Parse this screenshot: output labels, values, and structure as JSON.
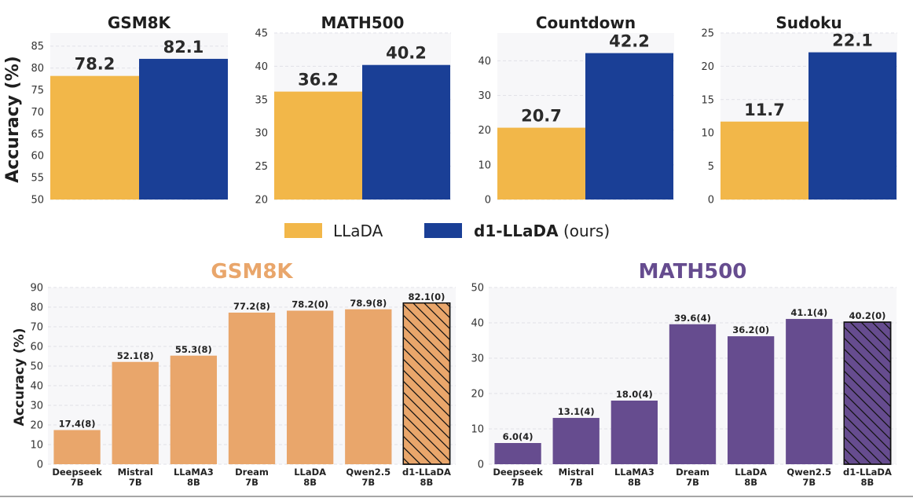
{
  "chart_data": [
    {
      "type": "bar",
      "title": "GSM8K",
      "ylabel": "Accuracy (%)",
      "ylim": [
        50,
        88
      ],
      "yticks": [
        50,
        55,
        60,
        65,
        70,
        75,
        80,
        85
      ],
      "series": [
        {
          "name": "LLaDA",
          "values": [
            78.2
          ],
          "labels": [
            "78.2"
          ]
        },
        {
          "name": "d1-LLaDA",
          "values": [
            82.1
          ],
          "labels": [
            "82.1"
          ]
        }
      ]
    },
    {
      "type": "bar",
      "title": "MATH500",
      "ylabel": "",
      "ylim": [
        20,
        45
      ],
      "yticks": [
        20,
        25,
        30,
        35,
        40,
        45
      ],
      "series": [
        {
          "name": "LLaDA",
          "values": [
            36.2
          ],
          "labels": [
            "36.2"
          ]
        },
        {
          "name": "d1-LLaDA",
          "values": [
            40.2
          ],
          "labels": [
            "40.2"
          ]
        }
      ]
    },
    {
      "type": "bar",
      "title": "Countdown",
      "ylabel": "",
      "ylim": [
        0,
        48
      ],
      "yticks": [
        0,
        10,
        20,
        30,
        40
      ],
      "series": [
        {
          "name": "LLaDA",
          "values": [
            20.7
          ],
          "labels": [
            "20.7"
          ]
        },
        {
          "name": "d1-LLaDA",
          "values": [
            42.2
          ],
          "labels": [
            "42.2"
          ]
        }
      ]
    },
    {
      "type": "bar",
      "title": "Sudoku",
      "ylabel": "",
      "ylim": [
        0,
        25
      ],
      "yticks": [
        0,
        5,
        10,
        15,
        20,
        25
      ],
      "series": [
        {
          "name": "LLaDA",
          "values": [
            11.7
          ],
          "labels": [
            "11.7"
          ]
        },
        {
          "name": "d1-LLaDA",
          "values": [
            22.1
          ],
          "labels": [
            "22.1"
          ]
        }
      ]
    },
    {
      "type": "bar",
      "title": "GSM8K",
      "ylabel": "Accuracy (%)",
      "ylim": [
        0,
        90
      ],
      "yticks": [
        0,
        10,
        20,
        30,
        40,
        50,
        60,
        70,
        80,
        90
      ],
      "categories": [
        [
          "Deepseek",
          "7B"
        ],
        [
          "Mistral",
          "7B"
        ],
        [
          "LLaMA3",
          "8B"
        ],
        [
          "Dream",
          "7B"
        ],
        [
          "LLaDA",
          "8B"
        ],
        [
          "Qwen2.5",
          "7B"
        ],
        [
          "d1-LLaDA",
          "8B"
        ]
      ],
      "values": [
        17.4,
        52.1,
        55.3,
        77.2,
        78.2,
        78.9,
        82.1
      ],
      "labels": [
        "17.4(8)",
        "52.1(8)",
        "55.3(8)",
        "77.2(8)",
        "78.2(0)",
        "78.9(8)",
        "82.1(0)"
      ],
      "hatched_index": 6
    },
    {
      "type": "bar",
      "title": "MATH500",
      "ylabel": "",
      "ylim": [
        0,
        50
      ],
      "yticks": [
        0,
        10,
        20,
        30,
        40,
        50
      ],
      "categories": [
        [
          "Deepseek",
          "7B"
        ],
        [
          "Mistral",
          "7B"
        ],
        [
          "LLaMA3",
          "8B"
        ],
        [
          "Dream",
          "7B"
        ],
        [
          "LLaDA",
          "8B"
        ],
        [
          "Qwen2.5",
          "7B"
        ],
        [
          "d1-LLaDA",
          "8B"
        ]
      ],
      "values": [
        6.0,
        13.1,
        18.0,
        39.6,
        36.2,
        41.1,
        40.2
      ],
      "labels": [
        "6.0(4)",
        "13.1(4)",
        "18.0(4)",
        "39.6(4)",
        "36.2(0)",
        "41.1(4)",
        "40.2(0)"
      ],
      "hatched_index": 6
    }
  ],
  "legend": {
    "placement": "between-rows-center",
    "items": [
      {
        "name": "LLaDA",
        "bold_part": "",
        "rest": "LLaDA"
      },
      {
        "name": "d1-LLaDA (ours)",
        "bold_part": "d1-LLaDA",
        "rest": " (ours)"
      }
    ]
  },
  "colors": {
    "llada": "#F2B749",
    "d1": "#1A3F96",
    "gsm8k_bars": "#E9A66B",
    "gsm8k_title": "#E9A66B",
    "math_bars": "#664C8F",
    "math_title": "#664C8F",
    "plot_bg": "#F7F7F9",
    "grid": "#E2E2E8"
  }
}
